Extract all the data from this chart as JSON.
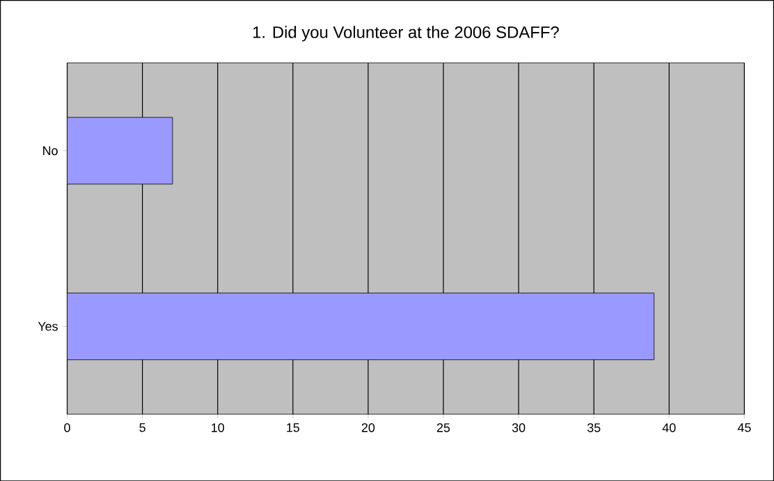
{
  "chart_data": {
    "type": "bar",
    "orientation": "horizontal",
    "title": "1. Did you Volunteer at the 2006 SDAFF?",
    "categories": [
      "No",
      "Yes"
    ],
    "values": [
      7,
      39
    ],
    "color": "#9999ff",
    "xlim": [
      0,
      45
    ],
    "xticks": [
      0,
      5,
      10,
      15,
      20,
      25,
      30,
      35,
      40,
      45
    ],
    "grid": "x"
  }
}
